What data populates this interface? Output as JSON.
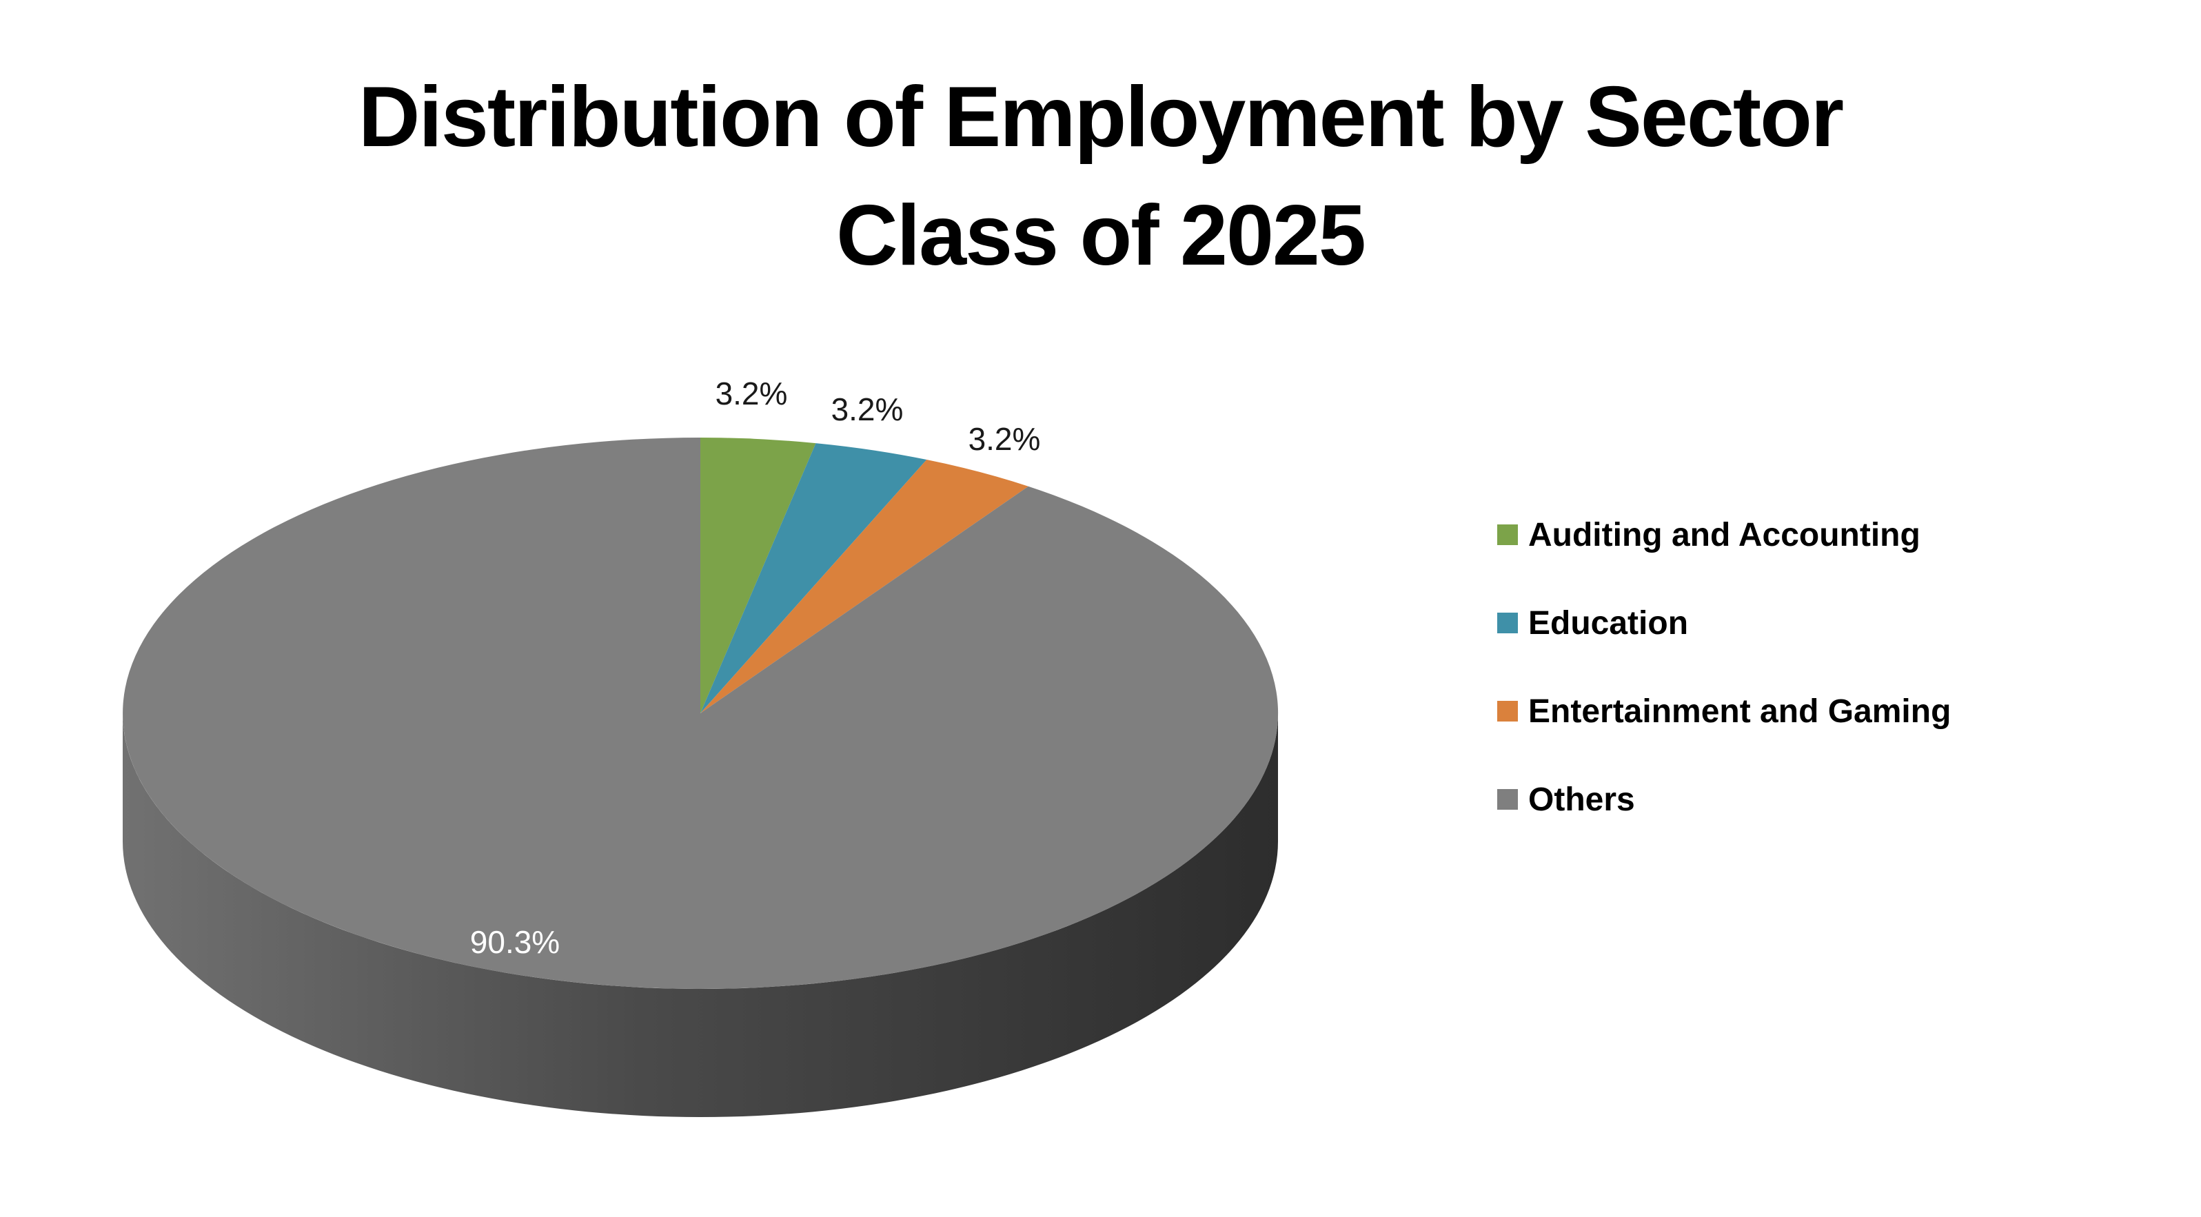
{
  "title": {
    "line1": "Distribution of Employment by Sector",
    "line2": "Class of 2025"
  },
  "chart_data": {
    "type": "pie",
    "three_d": true,
    "title": "Distribution of Employment by Sector",
    "subtitle": "Class of 2025",
    "start_angle_deg": 0,
    "direction": "clockwise",
    "legend_position": "right",
    "categories": [
      "Auditing and Accounting",
      "Education",
      "Entertainment and Gaming",
      "Others"
    ],
    "values": [
      3.2,
      3.2,
      3.2,
      90.3
    ],
    "slices": [
      {
        "label": "Auditing and Accounting",
        "value_pct": 3.2,
        "display": "3.2%",
        "color": "#7CA349"
      },
      {
        "label": "Education",
        "value_pct": 3.2,
        "display": "3.2%",
        "color": "#3F90A8"
      },
      {
        "label": "Entertainment and Gaming",
        "value_pct": 3.2,
        "display": "3.2%",
        "color": "#DA813C"
      },
      {
        "label": "Others",
        "value_pct": 90.3,
        "display": "90.3%",
        "color": "#7F7F7F"
      }
    ]
  },
  "colors": {
    "background": "#FFFFFF",
    "title_text": "#000000",
    "data_label_dark": "#1A1A1A",
    "data_label_light": "#FFFFFF",
    "rim_gradient_left": "#717171",
    "rim_gradient_mid": "#4A4A4A",
    "rim_gradient_right": "#2D2D2D"
  }
}
